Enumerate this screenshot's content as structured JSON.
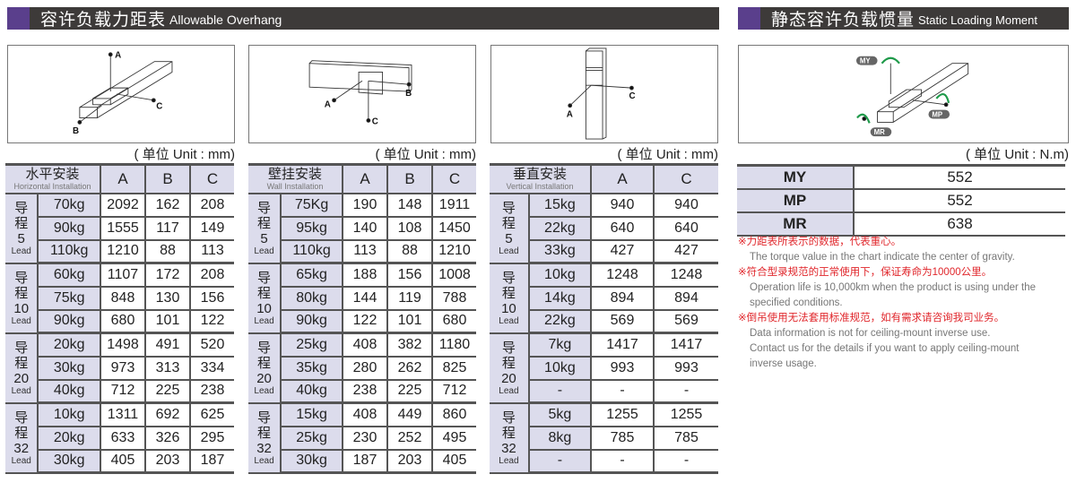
{
  "overhang": {
    "title_cn": "容许负载力距表",
    "title_en": "Allowable Overhang",
    "unit": "( 单位 Unit : mm)",
    "diagram_labels": {
      "a": "A",
      "b": "B",
      "c": "C"
    },
    "tables": [
      {
        "header_cn": "水平安装",
        "header_en": "Horizontal Installation",
        "columns": [
          "A",
          "B",
          "C"
        ],
        "groups": [
          {
            "lead_cn": "导程",
            "lead_no": "5",
            "lead_en": "Lead",
            "rows": [
              [
                "70kg",
                "2092",
                "162",
                "208"
              ],
              [
                "90kg",
                "1555",
                "117",
                "149"
              ],
              [
                "110kg",
                "1210",
                "88",
                "113"
              ]
            ]
          },
          {
            "lead_cn": "导程",
            "lead_no": "10",
            "lead_en": "Lead",
            "rows": [
              [
                "60kg",
                "1107",
                "172",
                "208"
              ],
              [
                "75kg",
                "848",
                "130",
                "156"
              ],
              [
                "90kg",
                "680",
                "101",
                "122"
              ]
            ]
          },
          {
            "lead_cn": "导程",
            "lead_no": "20",
            "lead_en": "Lead",
            "rows": [
              [
                "20kg",
                "1498",
                "491",
                "520"
              ],
              [
                "30kg",
                "973",
                "313",
                "334"
              ],
              [
                "40kg",
                "712",
                "225",
                "238"
              ]
            ]
          },
          {
            "lead_cn": "导程",
            "lead_no": "32",
            "lead_en": "Lead",
            "rows": [
              [
                "10kg",
                "1311",
                "692",
                "625"
              ],
              [
                "20kg",
                "633",
                "326",
                "295"
              ],
              [
                "30kg",
                "405",
                "203",
                "187"
              ]
            ]
          }
        ]
      },
      {
        "header_cn": "壁挂安装",
        "header_en": "Wall Installation",
        "columns": [
          "A",
          "B",
          "C"
        ],
        "groups": [
          {
            "lead_cn": "导程",
            "lead_no": "5",
            "lead_en": "Lead",
            "rows": [
              [
                "75Kg",
                "190",
                "148",
                "1911"
              ],
              [
                "95kg",
                "140",
                "108",
                "1450"
              ],
              [
                "110kg",
                "113",
                "88",
                "1210"
              ]
            ]
          },
          {
            "lead_cn": "导程",
            "lead_no": "10",
            "lead_en": "Lead",
            "rows": [
              [
                "65kg",
                "188",
                "156",
                "1008"
              ],
              [
                "80kg",
                "144",
                "119",
                "788"
              ],
              [
                "90kg",
                "122",
                "101",
                "680"
              ]
            ]
          },
          {
            "lead_cn": "导程",
            "lead_no": "20",
            "lead_en": "Lead",
            "rows": [
              [
                "25kg",
                "408",
                "382",
                "1180"
              ],
              [
                "35kg",
                "280",
                "262",
                "825"
              ],
              [
                "40kg",
                "238",
                "225",
                "712"
              ]
            ]
          },
          {
            "lead_cn": "导程",
            "lead_no": "32",
            "lead_en": "Lead",
            "rows": [
              [
                "15kg",
                "408",
                "449",
                "860"
              ],
              [
                "25kg",
                "230",
                "252",
                "495"
              ],
              [
                "30kg",
                "187",
                "203",
                "405"
              ]
            ]
          }
        ]
      },
      {
        "header_cn": "垂直安装",
        "header_en": "Vertical Installation",
        "columns": [
          "A",
          "C"
        ],
        "groups": [
          {
            "lead_cn": "导程",
            "lead_no": "5",
            "lead_en": "Lead",
            "rows": [
              [
                "15kg",
                "940",
                "940"
              ],
              [
                "22kg",
                "640",
                "640"
              ],
              [
                "33kg",
                "427",
                "427"
              ]
            ]
          },
          {
            "lead_cn": "导程",
            "lead_no": "10",
            "lead_en": "Lead",
            "rows": [
              [
                "10kg",
                "1248",
                "1248"
              ],
              [
                "14kg",
                "894",
                "894"
              ],
              [
                "22kg",
                "569",
                "569"
              ]
            ]
          },
          {
            "lead_cn": "导程",
            "lead_no": "20",
            "lead_en": "Lead",
            "rows": [
              [
                "7kg",
                "1417",
                "1417"
              ],
              [
                "10kg",
                "993",
                "993"
              ],
              [
                "-",
                "-",
                "-"
              ]
            ]
          },
          {
            "lead_cn": "导程",
            "lead_no": "32",
            "lead_en": "Lead",
            "rows": [
              [
                "5kg",
                "1255",
                "1255"
              ],
              [
                "8kg",
                "785",
                "785"
              ],
              [
                "-",
                "-",
                "-"
              ]
            ]
          }
        ]
      }
    ]
  },
  "moment": {
    "title_cn": "静态容许负载惯量",
    "title_en": "Static Loading Moment",
    "unit": "( 单位 Unit : N.m)",
    "diagram_labels": {
      "my": "MY",
      "mp": "MP",
      "mr": "MR"
    },
    "rows": [
      [
        "MY",
        "552"
      ],
      [
        "MP",
        "552"
      ],
      [
        "MR",
        "638"
      ]
    ],
    "notes": [
      {
        "cn": "※力距表所表示的数据，代表重心。",
        "en": [
          "The torque value in the chart indicate the center of gravity."
        ]
      },
      {
        "cn": "※符合型录规范的正常使用下，保证寿命为10000公里。",
        "en": [
          "Operation life is 10,000km when the product is using under the",
          " specified conditions."
        ]
      },
      {
        "cn": "※倒吊使用无法套用标准规范，如有需求请咨询我司业务。",
        "en": [
          "Data information is not for ceiling-mount inverse use.",
          " Contact us for the details if you want to apply ceiling-mount",
          " inverse usage."
        ]
      }
    ]
  },
  "colors": {
    "bar": "#3d3a39",
    "accent": "#5a3f8c",
    "header_cell": "#dcdcec",
    "note_red": "#e0262b",
    "arrow_green": "#1f9a4a"
  }
}
